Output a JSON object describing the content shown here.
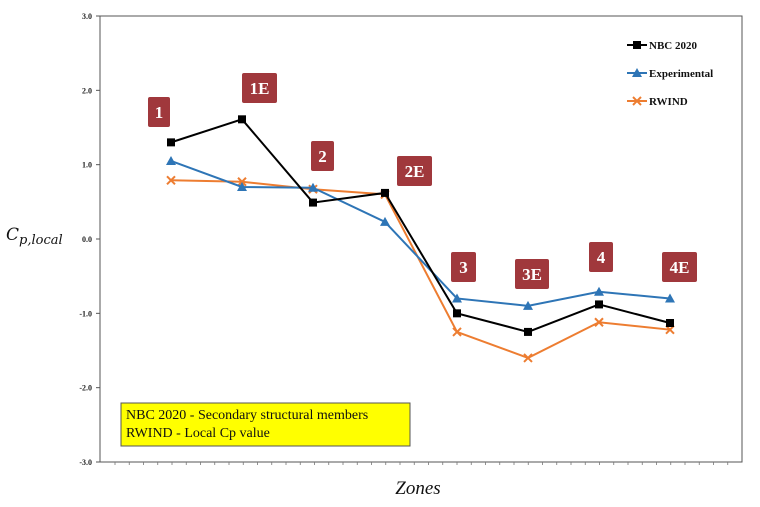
{
  "chart_data": {
    "type": "line",
    "xlabel": "Zones",
    "ylabel": "C",
    "ylabel_subscript": "p,local",
    "ylim": [
      -3.0,
      3.0
    ],
    "yticks": [
      "3.0",
      "2.0",
      "1.0",
      "0.0",
      "-1.0",
      "-2.0",
      "-3.0"
    ],
    "ytick_values": [
      3,
      2,
      1,
      0,
      -1,
      -2,
      -3
    ],
    "categories": [
      "1",
      "1E",
      "2",
      "2E",
      "3",
      "3E",
      "4",
      "4E"
    ],
    "series": [
      {
        "name": "NBC 2020",
        "color": "#000000",
        "marker": "square",
        "values": [
          1.3,
          1.61,
          0.49,
          0.62,
          -1.0,
          -1.25,
          -0.88,
          -1.13
        ]
      },
      {
        "name": "Experimental",
        "color": "#2e75b6",
        "marker": "triangle",
        "values": [
          1.05,
          0.7,
          0.69,
          0.23,
          -0.8,
          -0.9,
          -0.71,
          -0.8
        ]
      },
      {
        "name": "RWIND",
        "color": "#ed7d31",
        "marker": "x",
        "values": [
          0.79,
          0.77,
          0.67,
          0.6,
          -1.25,
          -1.6,
          -1.12,
          -1.22
        ]
      }
    ],
    "zone_labels": [
      "1",
      "1E",
      "2",
      "2E",
      "3",
      "3E",
      "4",
      "4E"
    ],
    "zone_label_color": "#a0383c",
    "grid": false,
    "legend_position": "top-right",
    "annotation": {
      "lines": [
        "NBC 2020 - Secondary structural members",
        "RWIND - Local Cp value"
      ],
      "background": "#ffff00"
    }
  }
}
